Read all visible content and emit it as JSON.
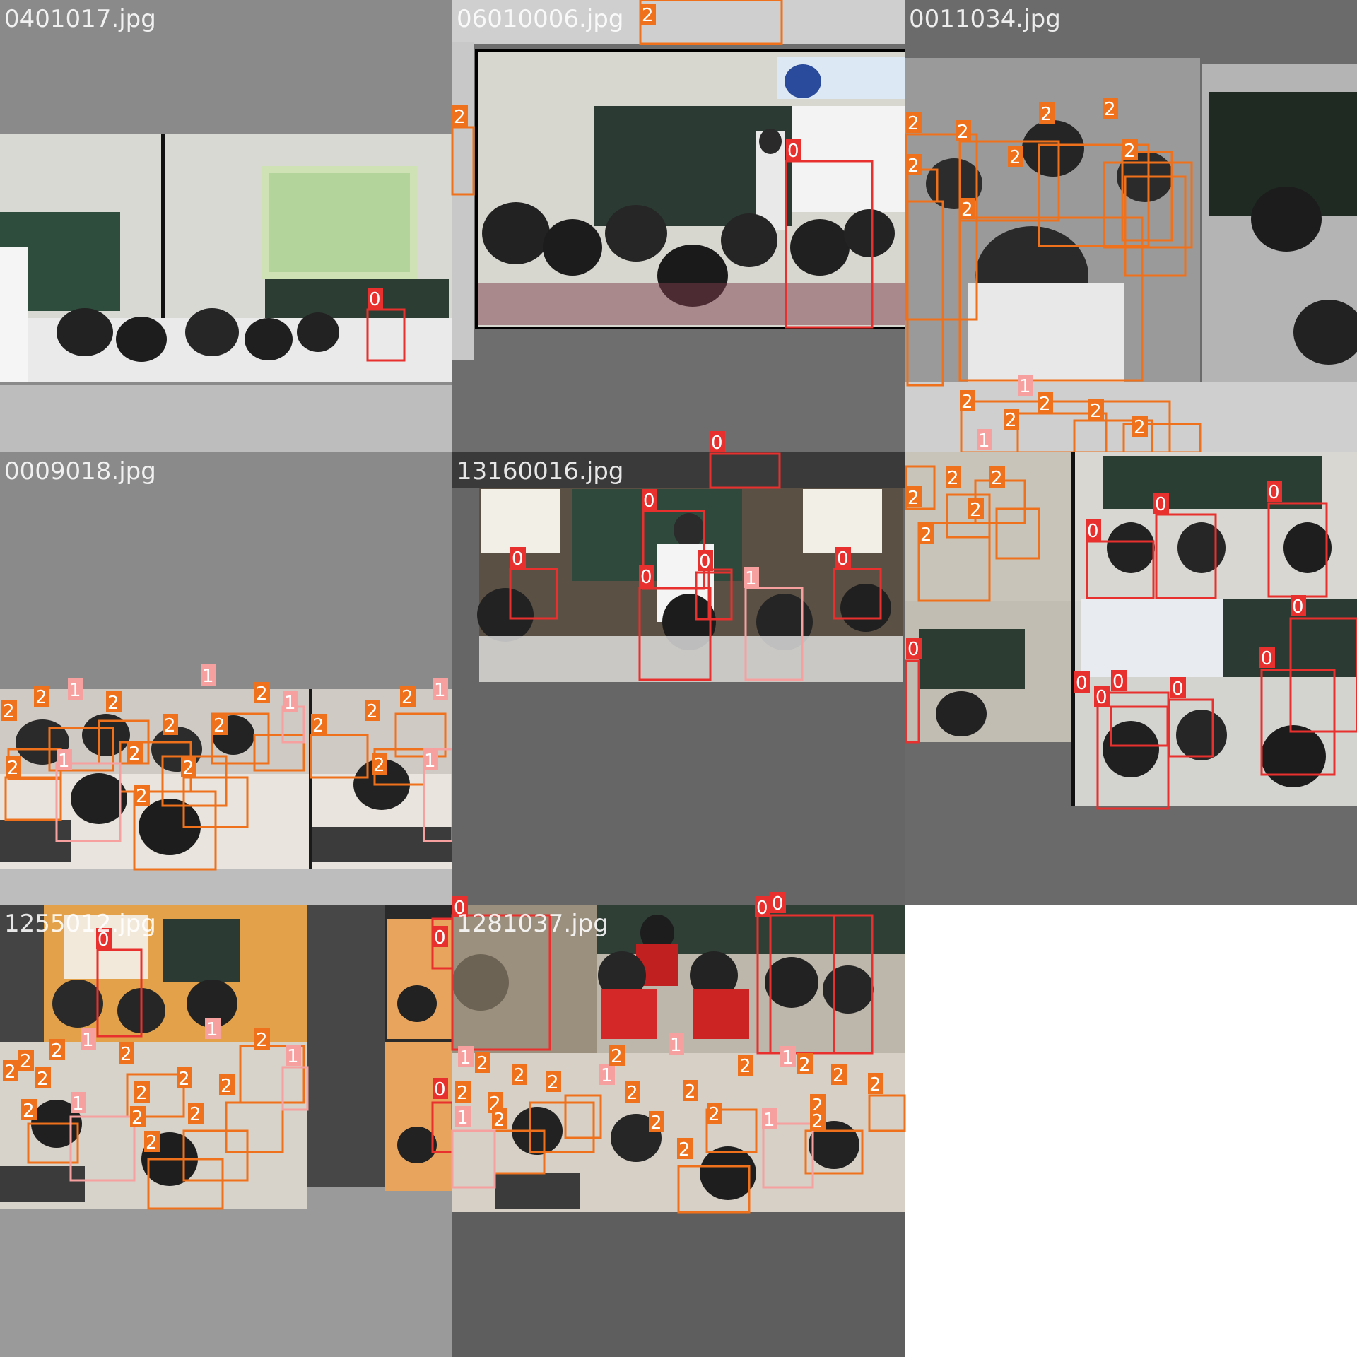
{
  "colors": {
    "class_0": "#e8302e",
    "class_1": "#f6a0a0",
    "class_2": "#f0711c",
    "background": "#ffffff"
  },
  "tiles": [
    {
      "caption": "0401017.jpg",
      "fill": "#8a8a8a",
      "scene": "classroom-projector",
      "label_counts": {
        "0": 1
      }
    },
    {
      "caption": "06010006.jpg",
      "fill": "#6e6e6e",
      "scene": "classroom-teacher-blackboard",
      "label_counts": {
        "0": 1,
        "2": 2
      }
    },
    {
      "caption": "0011034.jpg",
      "fill": "#6b6b6b",
      "scene": "classroom-writing-closeup",
      "label_counts": {
        "1": 3,
        "2": 34
      }
    },
    {
      "caption": "0009018.jpg",
      "fill": "#8a8a8a",
      "scene": "classroom-desks-wide",
      "label_counts": {
        "1": 7,
        "2": 27
      }
    },
    {
      "caption": "13160016.jpg",
      "fill": "#666666",
      "scene": "classroom-hands-raised",
      "label_counts": {
        "0": 7,
        "1": 1
      }
    },
    {
      "caption": "",
      "fill": "#6a6a6a",
      "scene": "classroom-raised-hands-collage",
      "label_counts": {
        "0": 11
      }
    },
    {
      "caption": "1255012.jpg",
      "fill": "#9a9a9a",
      "scene": "classroom-collage",
      "label_counts": {
        "0": 3,
        "1": 6,
        "2": 23
      }
    },
    {
      "caption": "1281037.jpg",
      "fill": "#5e5e5e",
      "scene": "classroom-collage-red",
      "label_counts": {
        "0": 3,
        "1": 7,
        "2": 27
      }
    }
  ]
}
